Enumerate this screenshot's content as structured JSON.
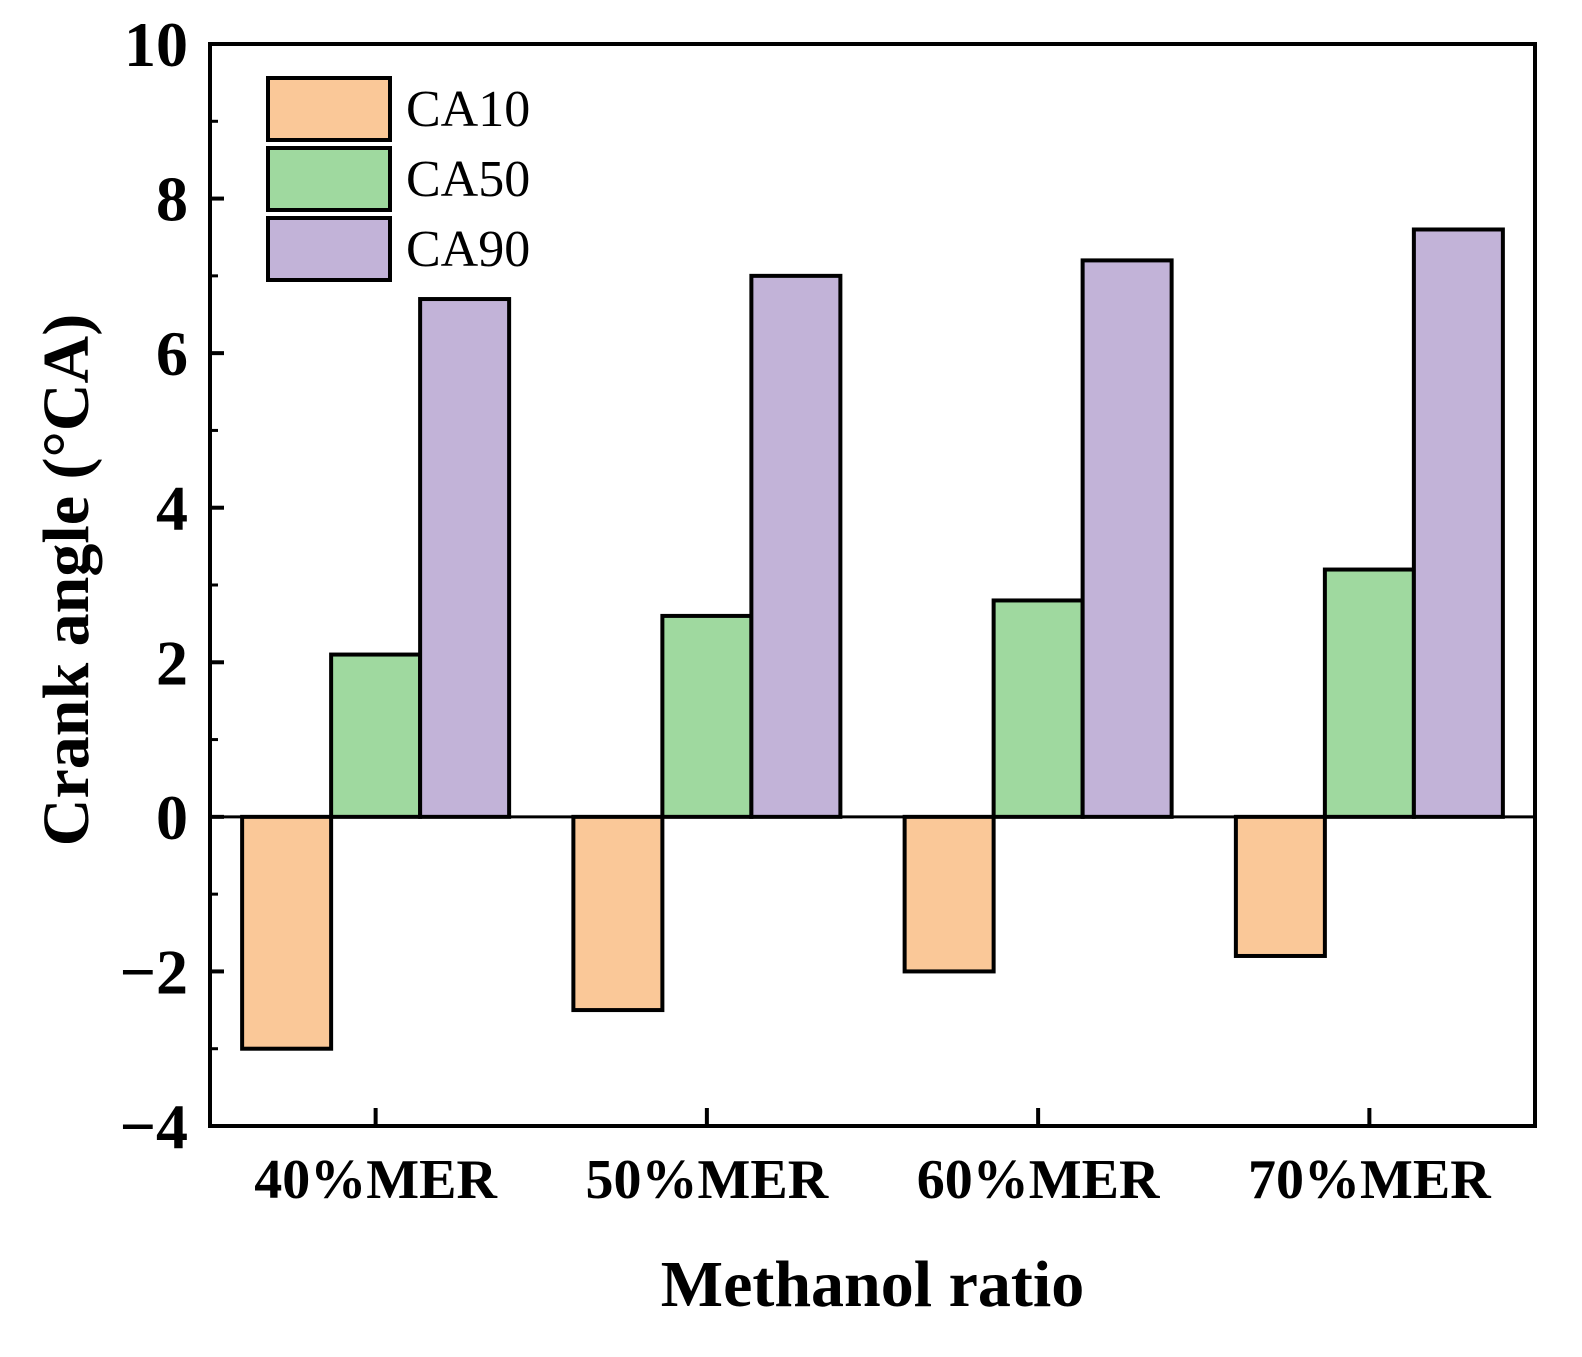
{
  "chart_data": {
    "type": "bar",
    "xlabel": "Methanol ratio",
    "ylabel": "Crank angle (°CA)",
    "categories": [
      "40%MER",
      "50%MER",
      "60%MER",
      "70%MER"
    ],
    "ylim": [
      -4,
      10
    ],
    "yticks": [
      -4,
      -2,
      0,
      2,
      4,
      6,
      8,
      10
    ],
    "ytick_labels": [
      "−4",
      "−2",
      "0",
      "2",
      "4",
      "6",
      "8",
      "10"
    ],
    "grid": false,
    "legend_position": "top-left",
    "series": [
      {
        "name": "CA10",
        "color": "#FAC898",
        "values": [
          -3.0,
          -2.5,
          -2.0,
          -1.8
        ]
      },
      {
        "name": "CA50",
        "color": "#9FD99F",
        "values": [
          2.1,
          2.6,
          2.8,
          3.2
        ]
      },
      {
        "name": "CA90",
        "color": "#C2B3D8",
        "values": [
          6.7,
          7.0,
          7.2,
          7.6
        ]
      }
    ]
  }
}
